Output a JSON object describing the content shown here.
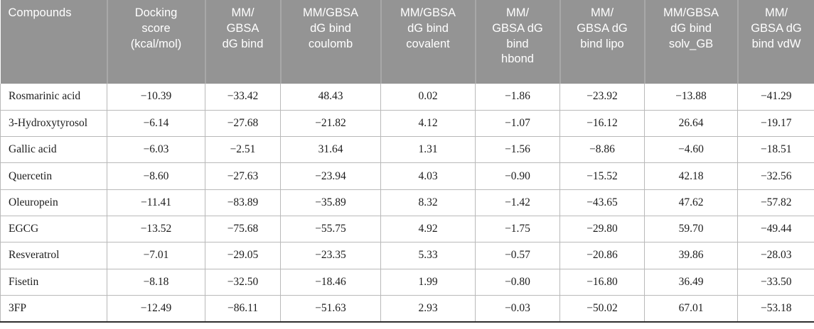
{
  "colors": {
    "header_background": "#949494",
    "header_text": "#ffffff",
    "header_divider": "#a8a8a8",
    "grid_line": "#b9b9b9",
    "bottom_border": "#2e2e2e",
    "body_text": "#1c1c1c"
  },
  "table": {
    "columns": [
      {
        "label": "Compounds"
      },
      {
        "label": "Docking\nscore\n(kcal/mol)"
      },
      {
        "label": "MM/\nGBSA\ndG bind"
      },
      {
        "label": "MM/GBSA\ndG bind\ncoulomb"
      },
      {
        "label": "MM/GBSA\ndG bind\ncovalent"
      },
      {
        "label": "MM/\nGBSA dG\nbind\nhbond"
      },
      {
        "label": "MM/\nGBSA dG\nbind lipo"
      },
      {
        "label": "MM/GBSA\ndG bind\nsolv_GB"
      },
      {
        "label": "MM/\nGBSA dG\nbind vdW"
      }
    ],
    "rows": [
      [
        "Rosmarinic acid",
        "−10.39",
        "−33.42",
        "48.43",
        "0.02",
        "−1.86",
        "−23.92",
        "−13.88",
        "−41.29"
      ],
      [
        "3-Hydroxytyrosol",
        "−6.14",
        "−27.68",
        "−21.82",
        "4.12",
        "−1.07",
        "−16.12",
        "26.64",
        "−19.17"
      ],
      [
        "Gallic acid",
        "−6.03",
        "−2.51",
        "31.64",
        "1.31",
        "−1.56",
        "−8.86",
        "−4.60",
        "−18.51"
      ],
      [
        "Quercetin",
        "−8.60",
        "−27.63",
        "−23.94",
        "4.03",
        "−0.90",
        "−15.52",
        "42.18",
        "−32.56"
      ],
      [
        "Oleuropein",
        "−11.41",
        "−83.89",
        "−35.89",
        "8.32",
        "−1.42",
        "−43.65",
        "47.62",
        "−57.82"
      ],
      [
        "EGCG",
        "−13.52",
        "−75.68",
        "−55.75",
        "4.92",
        "−1.75",
        "−29.80",
        "59.70",
        "−49.44"
      ],
      [
        "Resveratrol",
        "−7.01",
        "−29.05",
        "−23.35",
        "5.33",
        "−0.57",
        "−20.86",
        "39.86",
        "−28.03"
      ],
      [
        "Fisetin",
        "−8.18",
        "−32.50",
        "−18.46",
        "1.99",
        "−0.80",
        "−16.80",
        "36.49",
        "−33.50"
      ],
      [
        "3FP",
        "−12.49",
        "−86.11",
        "−51.63",
        "2.93",
        "−0.03",
        "−50.02",
        "67.01",
        "−53.18"
      ]
    ]
  }
}
